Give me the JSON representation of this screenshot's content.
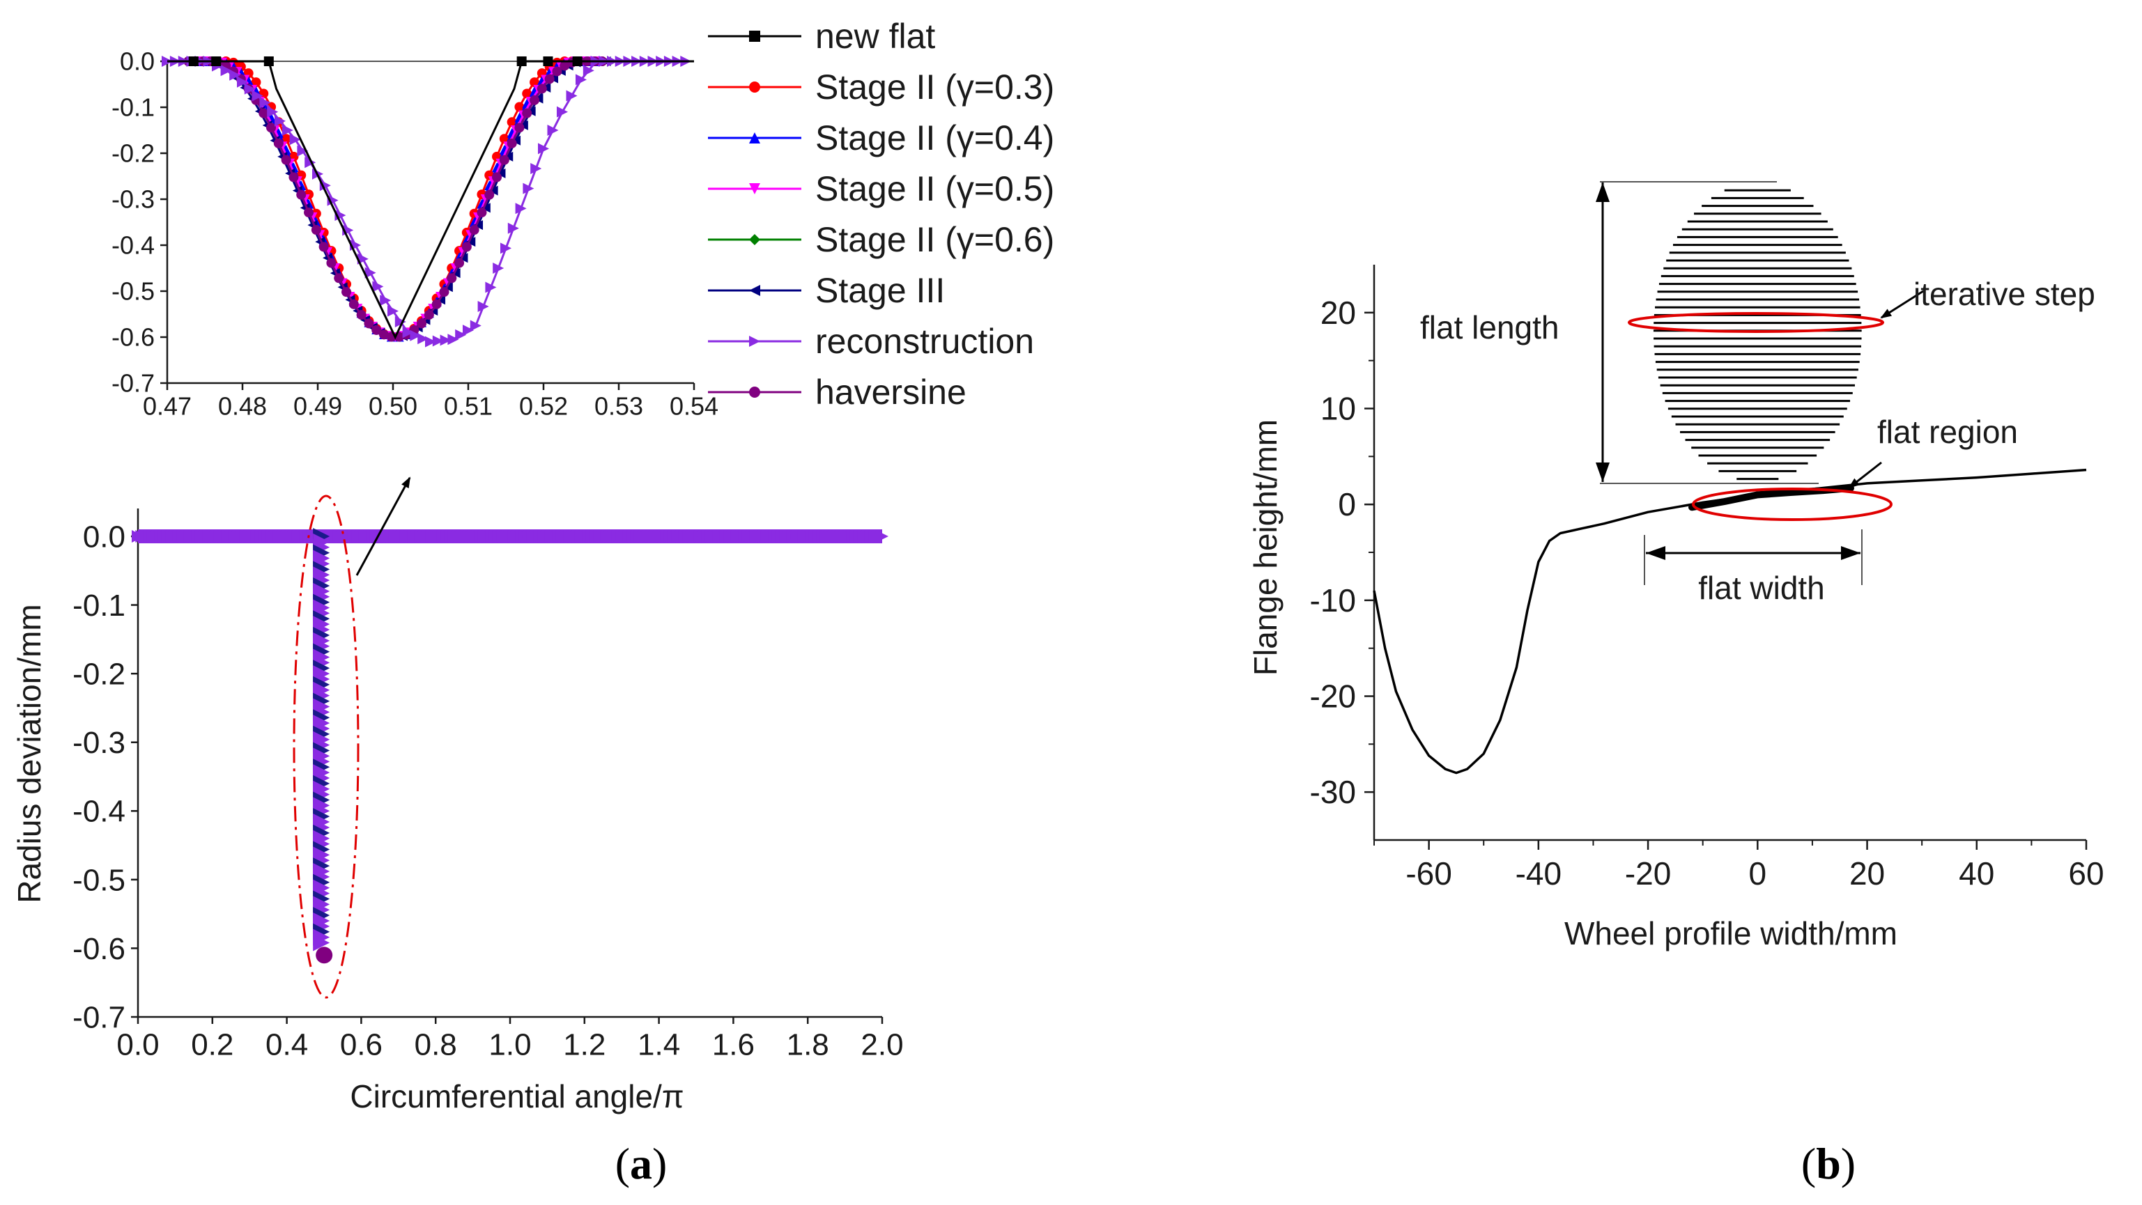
{
  "figure": {
    "panel_a_label": "(a)",
    "panel_b_label": "(b)",
    "panel_a_letter": "a",
    "panel_b_letter": "b"
  },
  "chart_data": [
    {
      "id": "inset",
      "type": "line",
      "title": "",
      "xlabel": "",
      "ylabel": "",
      "xlim": [
        0.47,
        0.54
      ],
      "ylim": [
        -0.7,
        0.0
      ],
      "xticks": [
        "0.47",
        "0.48",
        "0.49",
        "0.50",
        "0.51",
        "0.52",
        "0.53",
        "0.54"
      ],
      "yticks": [
        "0.0",
        "-0.1",
        "-0.2",
        "-0.3",
        "-0.4",
        "-0.5",
        "-0.6",
        "-0.7"
      ],
      "legend_position": "right",
      "series": [
        {
          "name": "new flat",
          "color": "#000000",
          "marker": "square",
          "kind": "flat",
          "center": 0.5003,
          "depth": 0.6,
          "start": 0.4835,
          "end": 0.5171
        },
        {
          "name": "Stage II (γ=0.3)",
          "color": "#ff0000",
          "marker": "circle",
          "kind": "haversine",
          "center": 0.5003,
          "depth": 0.6,
          "halfwidth": 0.0225
        },
        {
          "name": "Stage II (γ=0.4)",
          "color": "#0000ff",
          "marker": "triangle-up",
          "kind": "haversine",
          "center": 0.5003,
          "depth": 0.6,
          "halfwidth": 0.0235
        },
        {
          "name": "Stage II (γ=0.5)",
          "color": "#ff00ff",
          "marker": "triangle-down",
          "kind": "haversine",
          "center": 0.5003,
          "depth": 0.6,
          "halfwidth": 0.024
        },
        {
          "name": "Stage II (γ=0.6)",
          "color": "#008000",
          "marker": "diamond",
          "kind": "haversine",
          "center": 0.5003,
          "depth": 0.6,
          "halfwidth": 0.0245
        },
        {
          "name": "Stage III",
          "color": "#000080",
          "marker": "triangle-left",
          "kind": "haversine",
          "center": 0.5003,
          "depth": 0.6,
          "halfwidth": 0.025
        },
        {
          "name": "reconstruction",
          "color": "#8a2be2",
          "marker": "triangle-right",
          "kind": "reconstruction",
          "points": [
            [
              0.47,
              0
            ],
            [
              0.4755,
              0
            ],
            [
              0.479,
              -0.03
            ],
            [
              0.483,
              -0.09
            ],
            [
              0.487,
              -0.17
            ],
            [
              0.491,
              -0.27
            ],
            [
              0.495,
              -0.4
            ],
            [
              0.499,
              -0.52
            ],
            [
              0.502,
              -0.59
            ],
            [
              0.505,
              -0.61
            ],
            [
              0.508,
              -0.605
            ],
            [
              0.511,
              -0.575
            ],
            [
              0.514,
              -0.45
            ],
            [
              0.517,
              -0.32
            ],
            [
              0.52,
              -0.19
            ],
            [
              0.5225,
              -0.11
            ],
            [
              0.525,
              -0.04
            ],
            [
              0.527,
              0
            ],
            [
              0.54,
              0
            ]
          ]
        },
        {
          "name": "haversine",
          "color": "#800080",
          "marker": "circle",
          "kind": "haversine",
          "center": 0.5003,
          "depth": 0.6,
          "halfwidth": 0.0245
        }
      ]
    },
    {
      "id": "main-a",
      "type": "line",
      "title": "",
      "xlabel": "Circumferential angle/π",
      "ylabel": "Radius deviation/mm",
      "xlim": [
        0.0,
        2.0
      ],
      "ylim": [
        -0.7,
        0.0
      ],
      "xticks": [
        "0.0",
        "0.2",
        "0.4",
        "0.6",
        "0.8",
        "1.0",
        "1.2",
        "1.4",
        "1.6",
        "1.8",
        "2.0"
      ],
      "yticks": [
        "0.0",
        "-0.1",
        "-0.2",
        "-0.3",
        "-0.4",
        "-0.5",
        "-0.6",
        "-0.7"
      ],
      "series": [
        {
          "name": "haversine",
          "color": "#8a2be2",
          "center": 0.5003,
          "depth": 0.6,
          "halfwidth": 0.0245
        }
      ]
    },
    {
      "id": "main-b",
      "type": "line",
      "title": "",
      "xlabel": "Wheel profile width/mm",
      "ylabel": "Flange height/mm",
      "xlim": [
        -70,
        60
      ],
      "ylim": [
        -35,
        25
      ],
      "xticks": [
        "-60",
        "-40",
        "-20",
        "0",
        "20",
        "40",
        "60"
      ],
      "yticks": [
        "20",
        "10",
        "0",
        "-10",
        "-20",
        "-30"
      ],
      "series": [
        {
          "name": "wheel profile",
          "color": "#000000",
          "points": [
            [
              -70,
              -9
            ],
            [
              -68,
              -15
            ],
            [
              -66,
              -19.5
            ],
            [
              -63,
              -23.5
            ],
            [
              -60,
              -26.2
            ],
            [
              -57,
              -27.6
            ],
            [
              -55,
              -28
            ],
            [
              -53,
              -27.6
            ],
            [
              -50,
              -26
            ],
            [
              -47,
              -22.5
            ],
            [
              -44,
              -17
            ],
            [
              -42,
              -11
            ],
            [
              -40,
              -6
            ],
            [
              -38,
              -3.8
            ],
            [
              -36,
              -3
            ],
            [
              -32,
              -2.5
            ],
            [
              -28,
              -2
            ],
            [
              -24,
              -1.4
            ],
            [
              -20,
              -0.8
            ],
            [
              -10,
              0.2
            ],
            [
              0,
              1
            ],
            [
              10,
              1.6
            ],
            [
              20,
              2.2
            ],
            [
              30,
              2.5
            ],
            [
              40,
              2.8
            ],
            [
              50,
              3.2
            ],
            [
              60,
              3.6
            ]
          ]
        }
      ],
      "flat": {
        "x_start": -19,
        "x_end": 19,
        "y_bottom": 2.2,
        "y_top": 33.5,
        "center_y": 19
      },
      "annotations": {
        "flat_length": "flat length",
        "iterative_step": "iterative step",
        "flat_region": "flat region",
        "flat_width": "flat width"
      }
    }
  ]
}
